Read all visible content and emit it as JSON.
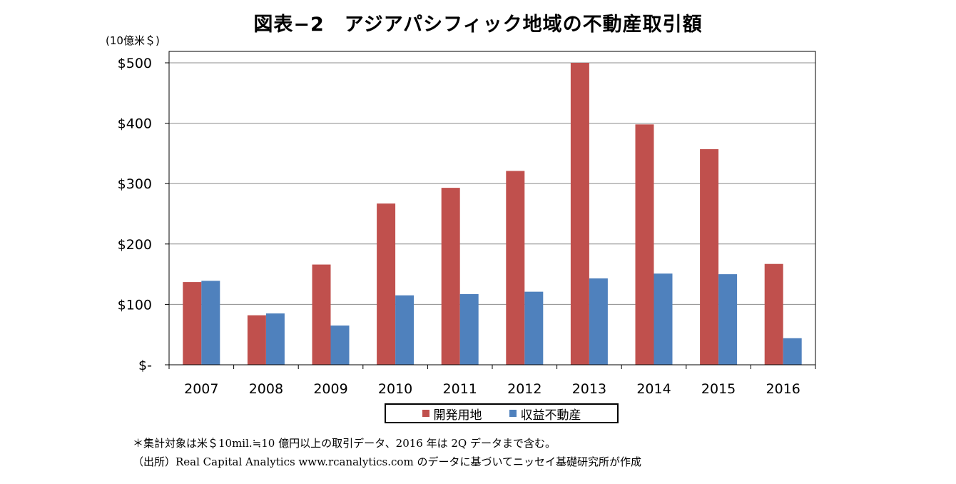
{
  "title": "図表−2　アジアパシフィック地域の不動産取引額",
  "unit_label": "(10億米＄)",
  "chart_data": {
    "type": "bar",
    "categories": [
      "2007",
      "2008",
      "2009",
      "2010",
      "2011",
      "2012",
      "2013",
      "2014",
      "2015",
      "2016"
    ],
    "series": [
      {
        "name": "開発用地",
        "color": "#C0504D",
        "values": [
          137,
          82,
          166,
          267,
          293,
          321,
          500,
          398,
          357,
          167
        ]
      },
      {
        "name": "収益不動産",
        "color": "#4F81BD",
        "values": [
          139,
          85,
          65,
          115,
          117,
          121,
          143,
          151,
          150,
          44
        ]
      }
    ],
    "ylim": [
      0,
      500
    ],
    "yticks": [
      0,
      100,
      200,
      300,
      400,
      500
    ],
    "ytick_labels": [
      "$-",
      "$100",
      "$200",
      "$300",
      "$400",
      "$500"
    ],
    "grid": true,
    "legend_position": "bottom"
  },
  "notes": [
    "＊集計対象は米＄10mil.≒10 億円以上の取引データ、2016 年は 2Q データまで含む。",
    "（出所）Real Capital Analytics www.rcanalytics.com のデータに基づいてニッセイ基礎研究所が作成"
  ]
}
